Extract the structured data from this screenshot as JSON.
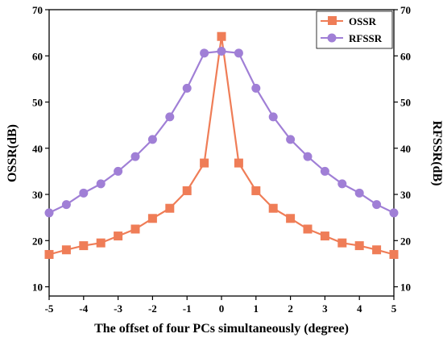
{
  "chart_data": {
    "type": "line",
    "xlabel": "The offset of four PCs simultaneously (degree)",
    "ylabel_left": "OSSR(dB)",
    "ylabel_right": "RFSSR(dB)",
    "xlim": [
      -5,
      5
    ],
    "ylim": [
      8,
      70
    ],
    "x_ticks": [
      -5,
      -4,
      -3,
      -2,
      -1,
      0,
      1,
      2,
      3,
      4,
      5
    ],
    "y_ticks": [
      10,
      20,
      30,
      40,
      50,
      60,
      70
    ],
    "legend_position": "top-right",
    "x": [
      -5,
      -4.5,
      -4,
      -3.5,
      -3,
      -2.5,
      -2,
      -1.5,
      -1,
      -0.5,
      0,
      0.5,
      1,
      1.5,
      2,
      2.5,
      3,
      3.5,
      4,
      4.5,
      5
    ],
    "series": [
      {
        "name": "OSSR",
        "axis": "left",
        "color": "#ef7d57",
        "marker": "square",
        "values": [
          17,
          18,
          18.9,
          19.5,
          21,
          22.5,
          24.8,
          27,
          30.8,
          36.8,
          64.2,
          36.8,
          30.8,
          27,
          24.8,
          22.5,
          21,
          19.5,
          18.9,
          18,
          17
        ]
      },
      {
        "name": "RFSSR",
        "axis": "right",
        "color": "#a07fd6",
        "marker": "circle",
        "values": [
          26,
          27.8,
          30.3,
          32.3,
          35,
          38.2,
          41.9,
          46.8,
          53,
          60.6,
          61,
          60.6,
          53,
          46.8,
          41.9,
          38.2,
          35,
          32.3,
          30.3,
          27.8,
          26
        ]
      }
    ]
  }
}
